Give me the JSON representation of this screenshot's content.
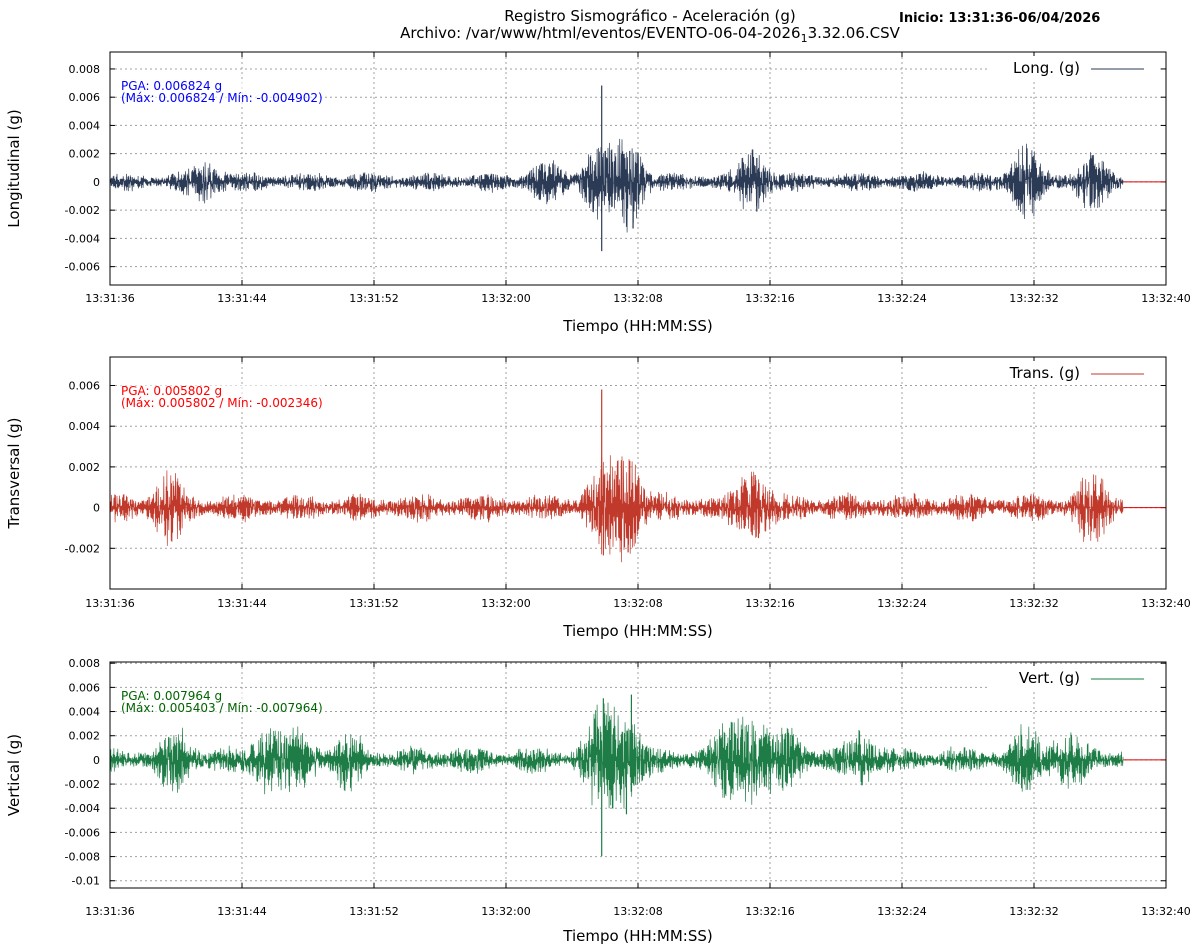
{
  "header": {
    "title_line1": "Registro Sismográfico - Aceleración (g)",
    "title_line2_prefix": "Archivo: /var/www/html/eventos/EVENTO-06-04-2026",
    "title_line2_subscript": "1",
    "title_line2_suffix": "3.32.06.CSV",
    "start_label": "Inicio: 13:31:36-06/04/2026"
  },
  "chart_data": [
    {
      "type": "line",
      "title": "",
      "xlabel": "Tiempo (HH:MM:SS)",
      "ylabel": "Longitudinal (g)",
      "legend": "Long. (g)",
      "legend_position": "top-right",
      "color": "#2b3a55",
      "grid": true,
      "ylim": [
        -0.0073,
        0.0092
      ],
      "yticks": [
        0.008,
        0.006,
        0.004,
        0.002,
        0,
        -0.002,
        -0.004,
        -0.006
      ],
      "ytick_labels": [
        "0.008",
        "0.006",
        "0.004",
        "0.002",
        "0",
        "-0.002",
        "-0.004",
        "-0.006"
      ],
      "xlim_s": [
        0,
        64
      ],
      "xticks": [
        "13:31:36",
        "13:31:44",
        "13:31:52",
        "13:32:00",
        "13:32:08",
        "13:32:16",
        "13:32:24",
        "13:32:32",
        "13:32:40"
      ],
      "signal_end_s": 61.4,
      "pga_text": "PGA: 0.006824 g",
      "maxmin_text": "(Máx: 0.006824 / Mín: -0.004902)",
      "annotation_color": "#0000ff",
      "pga": 0.006824,
      "max": 0.006824,
      "min": -0.004902,
      "noise_amplitude": 0.0007,
      "bursts": [
        {
          "t": 5.8,
          "amp": 0.0011
        },
        {
          "t": 26.3,
          "amp": 0.0011
        },
        {
          "t": 29.6,
          "amp": 0.0022
        },
        {
          "t": 31.4,
          "amp": 0.0026
        },
        {
          "t": 39.0,
          "amp": 0.0018
        },
        {
          "t": 55.5,
          "amp": 0.0022
        },
        {
          "t": 59.5,
          "amp": 0.0016
        }
      ],
      "spikes": [
        {
          "t": 29.8,
          "value": 0.006824
        },
        {
          "t": 29.8,
          "value": -0.004902
        },
        {
          "t": 31.7,
          "value": -0.0033
        },
        {
          "t": 31.5,
          "value": 0.0022
        },
        {
          "t": 39.2,
          "value": 0.0017
        },
        {
          "t": 39.2,
          "value": -0.0021
        }
      ]
    },
    {
      "type": "line",
      "title": "",
      "xlabel": "Tiempo (HH:MM:SS)",
      "ylabel": "Transversal (g)",
      "legend": "Trans. (g)",
      "legend_position": "top-right",
      "color": "#c0392b",
      "grid": true,
      "ylim": [
        -0.004,
        0.0074
      ],
      "yticks": [
        0.006,
        0.004,
        0.002,
        0,
        -0.002
      ],
      "ytick_labels": [
        "0.006",
        "0.004",
        "0.002",
        "0",
        "-0.002"
      ],
      "xlim_s": [
        0,
        64
      ],
      "xticks": [
        "13:31:36",
        "13:31:44",
        "13:31:52",
        "13:32:00",
        "13:32:08",
        "13:32:16",
        "13:32:24",
        "13:32:32",
        "13:32:40"
      ],
      "signal_end_s": 61.4,
      "pga_text": "PGA: 0.005802 g",
      "maxmin_text": "(Máx: 0.005802 / Mín: -0.002346)",
      "annotation_color": "#ff0000",
      "pga": 0.005802,
      "max": 0.005802,
      "min": -0.002346,
      "noise_amplitude": 0.0007,
      "bursts": [
        {
          "t": 3.5,
          "amp": 0.0011
        },
        {
          "t": 29.8,
          "amp": 0.0016
        },
        {
          "t": 31.4,
          "amp": 0.002
        },
        {
          "t": 39.0,
          "amp": 0.0014
        },
        {
          "t": 59.5,
          "amp": 0.0012
        }
      ],
      "spikes": [
        {
          "t": 29.8,
          "value": 0.005802
        },
        {
          "t": 29.9,
          "value": -0.002346
        },
        {
          "t": 31.5,
          "value": 0.0023
        },
        {
          "t": 31.4,
          "value": -0.0022
        },
        {
          "t": 39.1,
          "value": 0.0016
        },
        {
          "t": 39.3,
          "value": -0.0015
        }
      ]
    },
    {
      "type": "line",
      "title": "",
      "xlabel": "Tiempo (HH:MM:SS)",
      "ylabel": "Vertical (g)",
      "legend": "Vert. (g)",
      "legend_position": "top-right",
      "color": "#1e7d46",
      "grid": true,
      "ylim": [
        -0.0106,
        0.0081
      ],
      "yticks": [
        0.008,
        0.006,
        0.004,
        0.002,
        0,
        -0.002,
        -0.004,
        -0.006,
        -0.008,
        -0.01
      ],
      "ytick_labels": [
        "0.008",
        "0.006",
        "0.004",
        "0.002",
        "0",
        "-0.002",
        "-0.004",
        "-0.006",
        "-0.008",
        "-0.01"
      ],
      "xlim_s": [
        0,
        64
      ],
      "xticks": [
        "13:31:36",
        "13:31:44",
        "13:31:52",
        "13:32:00",
        "13:32:08",
        "13:32:16",
        "13:32:24",
        "13:32:32",
        "13:32:40"
      ],
      "signal_end_s": 61.4,
      "pga_text": "PGA: 0.007964 g",
      "maxmin_text": "(Máx: 0.005403 / Mín: -0.007964)",
      "annotation_color": "#006400",
      "pga": 0.007964,
      "max": 0.005403,
      "min": -0.007964,
      "noise_amplitude": 0.0011,
      "bursts": [
        {
          "t": 4.0,
          "amp": 0.0018
        },
        {
          "t": 9.5,
          "amp": 0.002
        },
        {
          "t": 11.5,
          "amp": 0.0018
        },
        {
          "t": 14.5,
          "amp": 0.0016
        },
        {
          "t": 29.8,
          "amp": 0.0034
        },
        {
          "t": 31.3,
          "amp": 0.003
        },
        {
          "t": 37.5,
          "amp": 0.0026
        },
        {
          "t": 39.0,
          "amp": 0.0026
        },
        {
          "t": 41.0,
          "amp": 0.002
        },
        {
          "t": 45.5,
          "amp": 0.0016
        },
        {
          "t": 55.5,
          "amp": 0.002
        },
        {
          "t": 58.0,
          "amp": 0.002
        }
      ],
      "spikes": [
        {
          "t": 29.8,
          "value": -0.007964
        },
        {
          "t": 31.6,
          "value": 0.005403
        },
        {
          "t": 29.9,
          "value": 0.0051
        },
        {
          "t": 31.3,
          "value": -0.0045
        },
        {
          "t": 37.7,
          "value": 0.0031
        }
      ]
    }
  ]
}
